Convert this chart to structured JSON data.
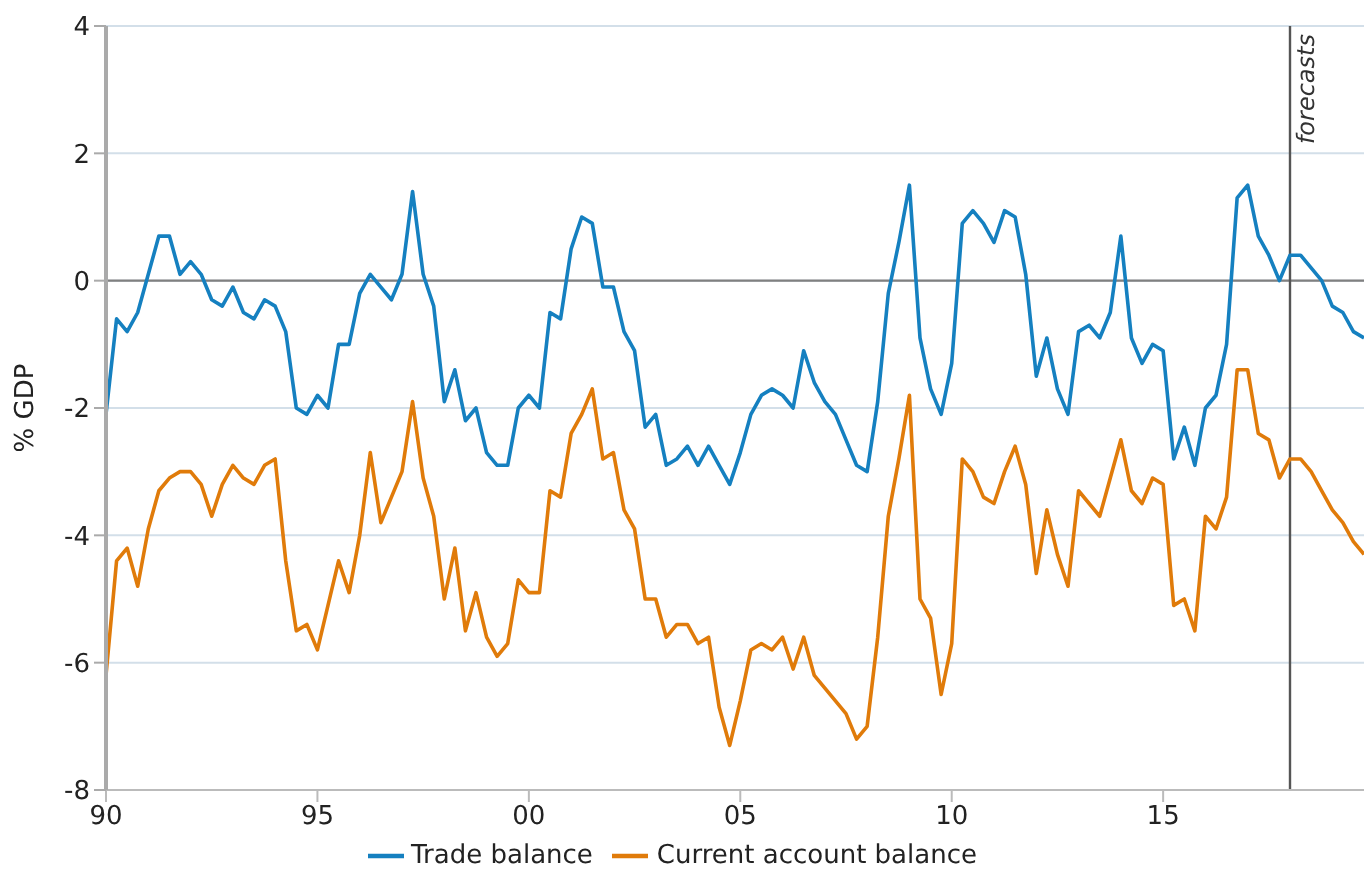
{
  "chart_data": {
    "type": "line",
    "ylabel": "% GDP",
    "x": [
      1990,
      1990.25,
      1990.5,
      1990.75,
      1991,
      1991.25,
      1991.5,
      1991.75,
      1992,
      1992.25,
      1992.5,
      1992.75,
      1993,
      1993.25,
      1993.5,
      1993.75,
      1994,
      1994.25,
      1994.5,
      1994.75,
      1995,
      1995.25,
      1995.5,
      1995.75,
      1996,
      1996.25,
      1996.5,
      1996.75,
      1997,
      1997.25,
      1997.5,
      1997.75,
      1998,
      1998.25,
      1998.5,
      1998.75,
      1999,
      1999.25,
      1999.5,
      1999.75,
      2000,
      2000.25,
      2000.5,
      2000.75,
      2001,
      2001.25,
      2001.5,
      2001.75,
      2002,
      2002.25,
      2002.5,
      2002.75,
      2003,
      2003.25,
      2003.5,
      2003.75,
      2004,
      2004.25,
      2004.5,
      2004.75,
      2005,
      2005.25,
      2005.5,
      2005.75,
      2006,
      2006.25,
      2006.5,
      2006.75,
      2007,
      2007.25,
      2007.5,
      2007.75,
      2008,
      2008.25,
      2008.5,
      2008.75,
      2009,
      2009.25,
      2009.5,
      2009.75,
      2010,
      2010.25,
      2010.5,
      2010.75,
      2011,
      2011.25,
      2011.5,
      2011.75,
      2012,
      2012.25,
      2012.5,
      2012.75,
      2013,
      2013.25,
      2013.5,
      2013.75,
      2014,
      2014.25,
      2014.5,
      2014.75,
      2015,
      2015.25,
      2015.5,
      2015.75,
      2016,
      2016.25,
      2016.5,
      2016.75,
      2017,
      2017.25,
      2017.5,
      2017.75,
      2018,
      2018.25,
      2018.5,
      2018.75,
      2019,
      2019.25,
      2019.5,
      2019.75
    ],
    "series": [
      {
        "name": "Trade balance",
        "color": "#1580c0",
        "values": [
          -2.1,
          -0.6,
          -0.8,
          -0.5,
          0.1,
          0.7,
          0.7,
          0.1,
          0.3,
          0.1,
          -0.3,
          -0.4,
          -0.1,
          -0.5,
          -0.6,
          -0.3,
          -0.4,
          -0.8,
          -2.0,
          -2.1,
          -1.8,
          -2.0,
          -1.0,
          -1.0,
          -0.2,
          0.1,
          -0.1,
          -0.3,
          0.1,
          1.4,
          0.1,
          -0.4,
          -1.9,
          -1.4,
          -2.2,
          -2.0,
          -2.7,
          -2.9,
          -2.9,
          -2.0,
          -1.8,
          -2.0,
          -0.5,
          -0.6,
          0.5,
          1.0,
          0.9,
          -0.1,
          -0.1,
          -0.8,
          -1.1,
          -2.3,
          -2.1,
          -2.9,
          -2.8,
          -2.6,
          -2.9,
          -2.6,
          -2.9,
          -3.2,
          -2.7,
          -2.1,
          -1.8,
          -1.7,
          -1.8,
          -2.0,
          -1.1,
          -1.6,
          -1.9,
          -2.1,
          -2.5,
          -2.9,
          -3.0,
          -1.9,
          -0.2,
          0.6,
          1.5,
          -0.9,
          -1.7,
          -2.1,
          -1.3,
          0.9,
          1.1,
          0.9,
          0.6,
          1.1,
          1.0,
          0.1,
          -1.5,
          -0.9,
          -1.7,
          -2.1,
          -0.8,
          -0.7,
          -0.9,
          -0.5,
          0.7,
          -0.9,
          -1.3,
          -1.0,
          -1.1,
          -2.8,
          -2.3,
          -2.9,
          -2.0,
          -1.8,
          -1.0,
          1.3,
          1.5,
          0.7,
          0.4,
          0.0,
          0.4,
          0.4,
          0.2,
          0.0,
          -0.4,
          -0.5,
          -0.8,
          -0.9
        ]
      },
      {
        "name": "Current account balance",
        "color": "#e07b0a",
        "values": [
          -6.2,
          -4.4,
          -4.2,
          -4.8,
          -3.9,
          -3.3,
          -3.1,
          -3.0,
          -3.0,
          -3.2,
          -3.7,
          -3.2,
          -2.9,
          -3.1,
          -3.2,
          -2.9,
          -2.8,
          -4.4,
          -5.5,
          -5.4,
          -5.8,
          -5.1,
          -4.4,
          -4.9,
          -4.0,
          -2.7,
          -3.8,
          -3.4,
          -3.0,
          -1.9,
          -3.1,
          -3.7,
          -5.0,
          -4.2,
          -5.5,
          -4.9,
          -5.6,
          -5.9,
          -5.7,
          -4.7,
          -4.9,
          -4.9,
          -3.3,
          -3.4,
          -2.4,
          -2.1,
          -1.7,
          -2.8,
          -2.7,
          -3.6,
          -3.9,
          -5.0,
          -5.0,
          -5.6,
          -5.4,
          -5.4,
          -5.7,
          -5.6,
          -6.7,
          -7.3,
          -6.6,
          -5.8,
          -5.7,
          -5.8,
          -5.6,
          -6.1,
          -5.6,
          -6.2,
          -6.4,
          -6.6,
          -6.8,
          -7.2,
          -7.0,
          -5.6,
          -3.7,
          -2.8,
          -1.8,
          -5.0,
          -5.3,
          -6.5,
          -5.7,
          -2.8,
          -3.0,
          -3.4,
          -3.5,
          -3.0,
          -2.6,
          -3.2,
          -4.6,
          -3.6,
          -4.3,
          -4.8,
          -3.3,
          -3.5,
          -3.7,
          -3.1,
          -2.5,
          -3.3,
          -3.5,
          -3.1,
          -3.2,
          -5.1,
          -5.0,
          -5.5,
          -3.7,
          -3.9,
          -3.4,
          -1.4,
          -1.4,
          -2.4,
          -2.5,
          -3.1,
          -2.8,
          -2.8,
          -3.0,
          -3.3,
          -3.6,
          -3.8,
          -4.1,
          -4.3
        ]
      }
    ],
    "xlim": [
      1990,
      2019.75
    ],
    "xticks": [
      {
        "value": 1990,
        "label": "90"
      },
      {
        "value": 1995,
        "label": "95"
      },
      {
        "value": 2000,
        "label": "00"
      },
      {
        "value": 2005,
        "label": "05"
      },
      {
        "value": 2010,
        "label": "10"
      },
      {
        "value": 2015,
        "label": "15"
      }
    ],
    "ylim": [
      -8,
      4
    ],
    "yticks": [
      -8,
      -6,
      -4,
      -2,
      0,
      2,
      4
    ],
    "grid": "y",
    "legend": "bottom",
    "marker": "none",
    "line_style": "solid",
    "ref_lines": [
      {
        "axis": "y",
        "value": 0,
        "label": null,
        "color": "#808080"
      },
      {
        "axis": "x",
        "value": 2018,
        "label": "forecasts",
        "color": "#555555"
      }
    ]
  }
}
